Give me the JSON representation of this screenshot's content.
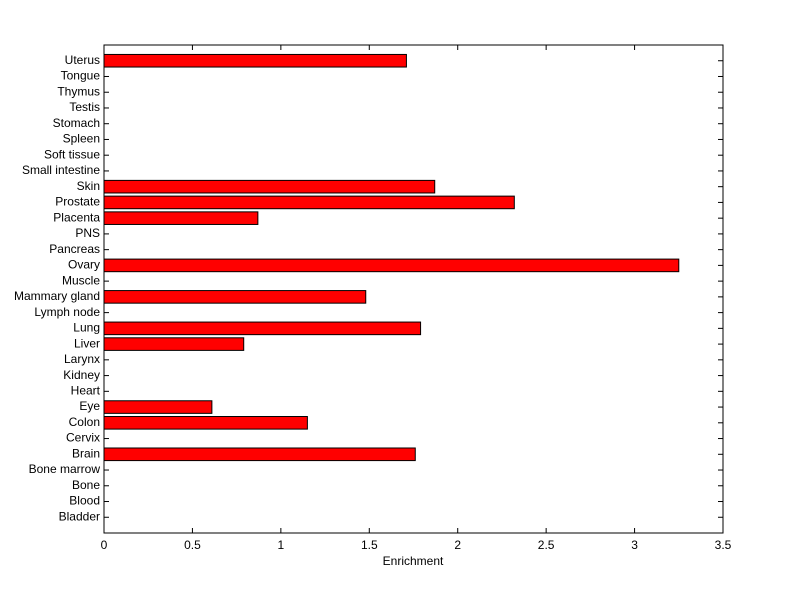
{
  "chart_data": {
    "type": "barh",
    "x_label": "Enrichment",
    "categories": [
      "Bladder",
      "Blood",
      "Bone",
      "Bone marrow",
      "Brain",
      "Cervix",
      "Colon",
      "Eye",
      "Heart",
      "Kidney",
      "Larynx",
      "Liver",
      "Lung",
      "Lymph node",
      "Mammary gland",
      "Muscle",
      "Ovary",
      "Pancreas",
      "PNS",
      "Placenta",
      "Prostate",
      "Skin",
      "Small intestine",
      "Soft tissue",
      "Spleen",
      "Stomach",
      "Testis",
      "Thymus",
      "Tongue",
      "Uterus"
    ],
    "values": [
      0,
      0,
      0,
      0,
      1.76,
      0,
      1.15,
      0.61,
      0,
      0,
      0,
      0.79,
      1.79,
      0,
      1.48,
      0,
      3.25,
      0,
      0,
      0.87,
      2.32,
      1.87,
      0,
      0,
      0,
      0,
      0,
      0,
      0,
      1.71
    ],
    "color": "#ff0000",
    "xlim": [
      0,
      3.5
    ],
    "xticks": [
      0,
      0.5,
      1,
      1.5,
      2,
      2.5,
      3,
      3.5
    ]
  }
}
